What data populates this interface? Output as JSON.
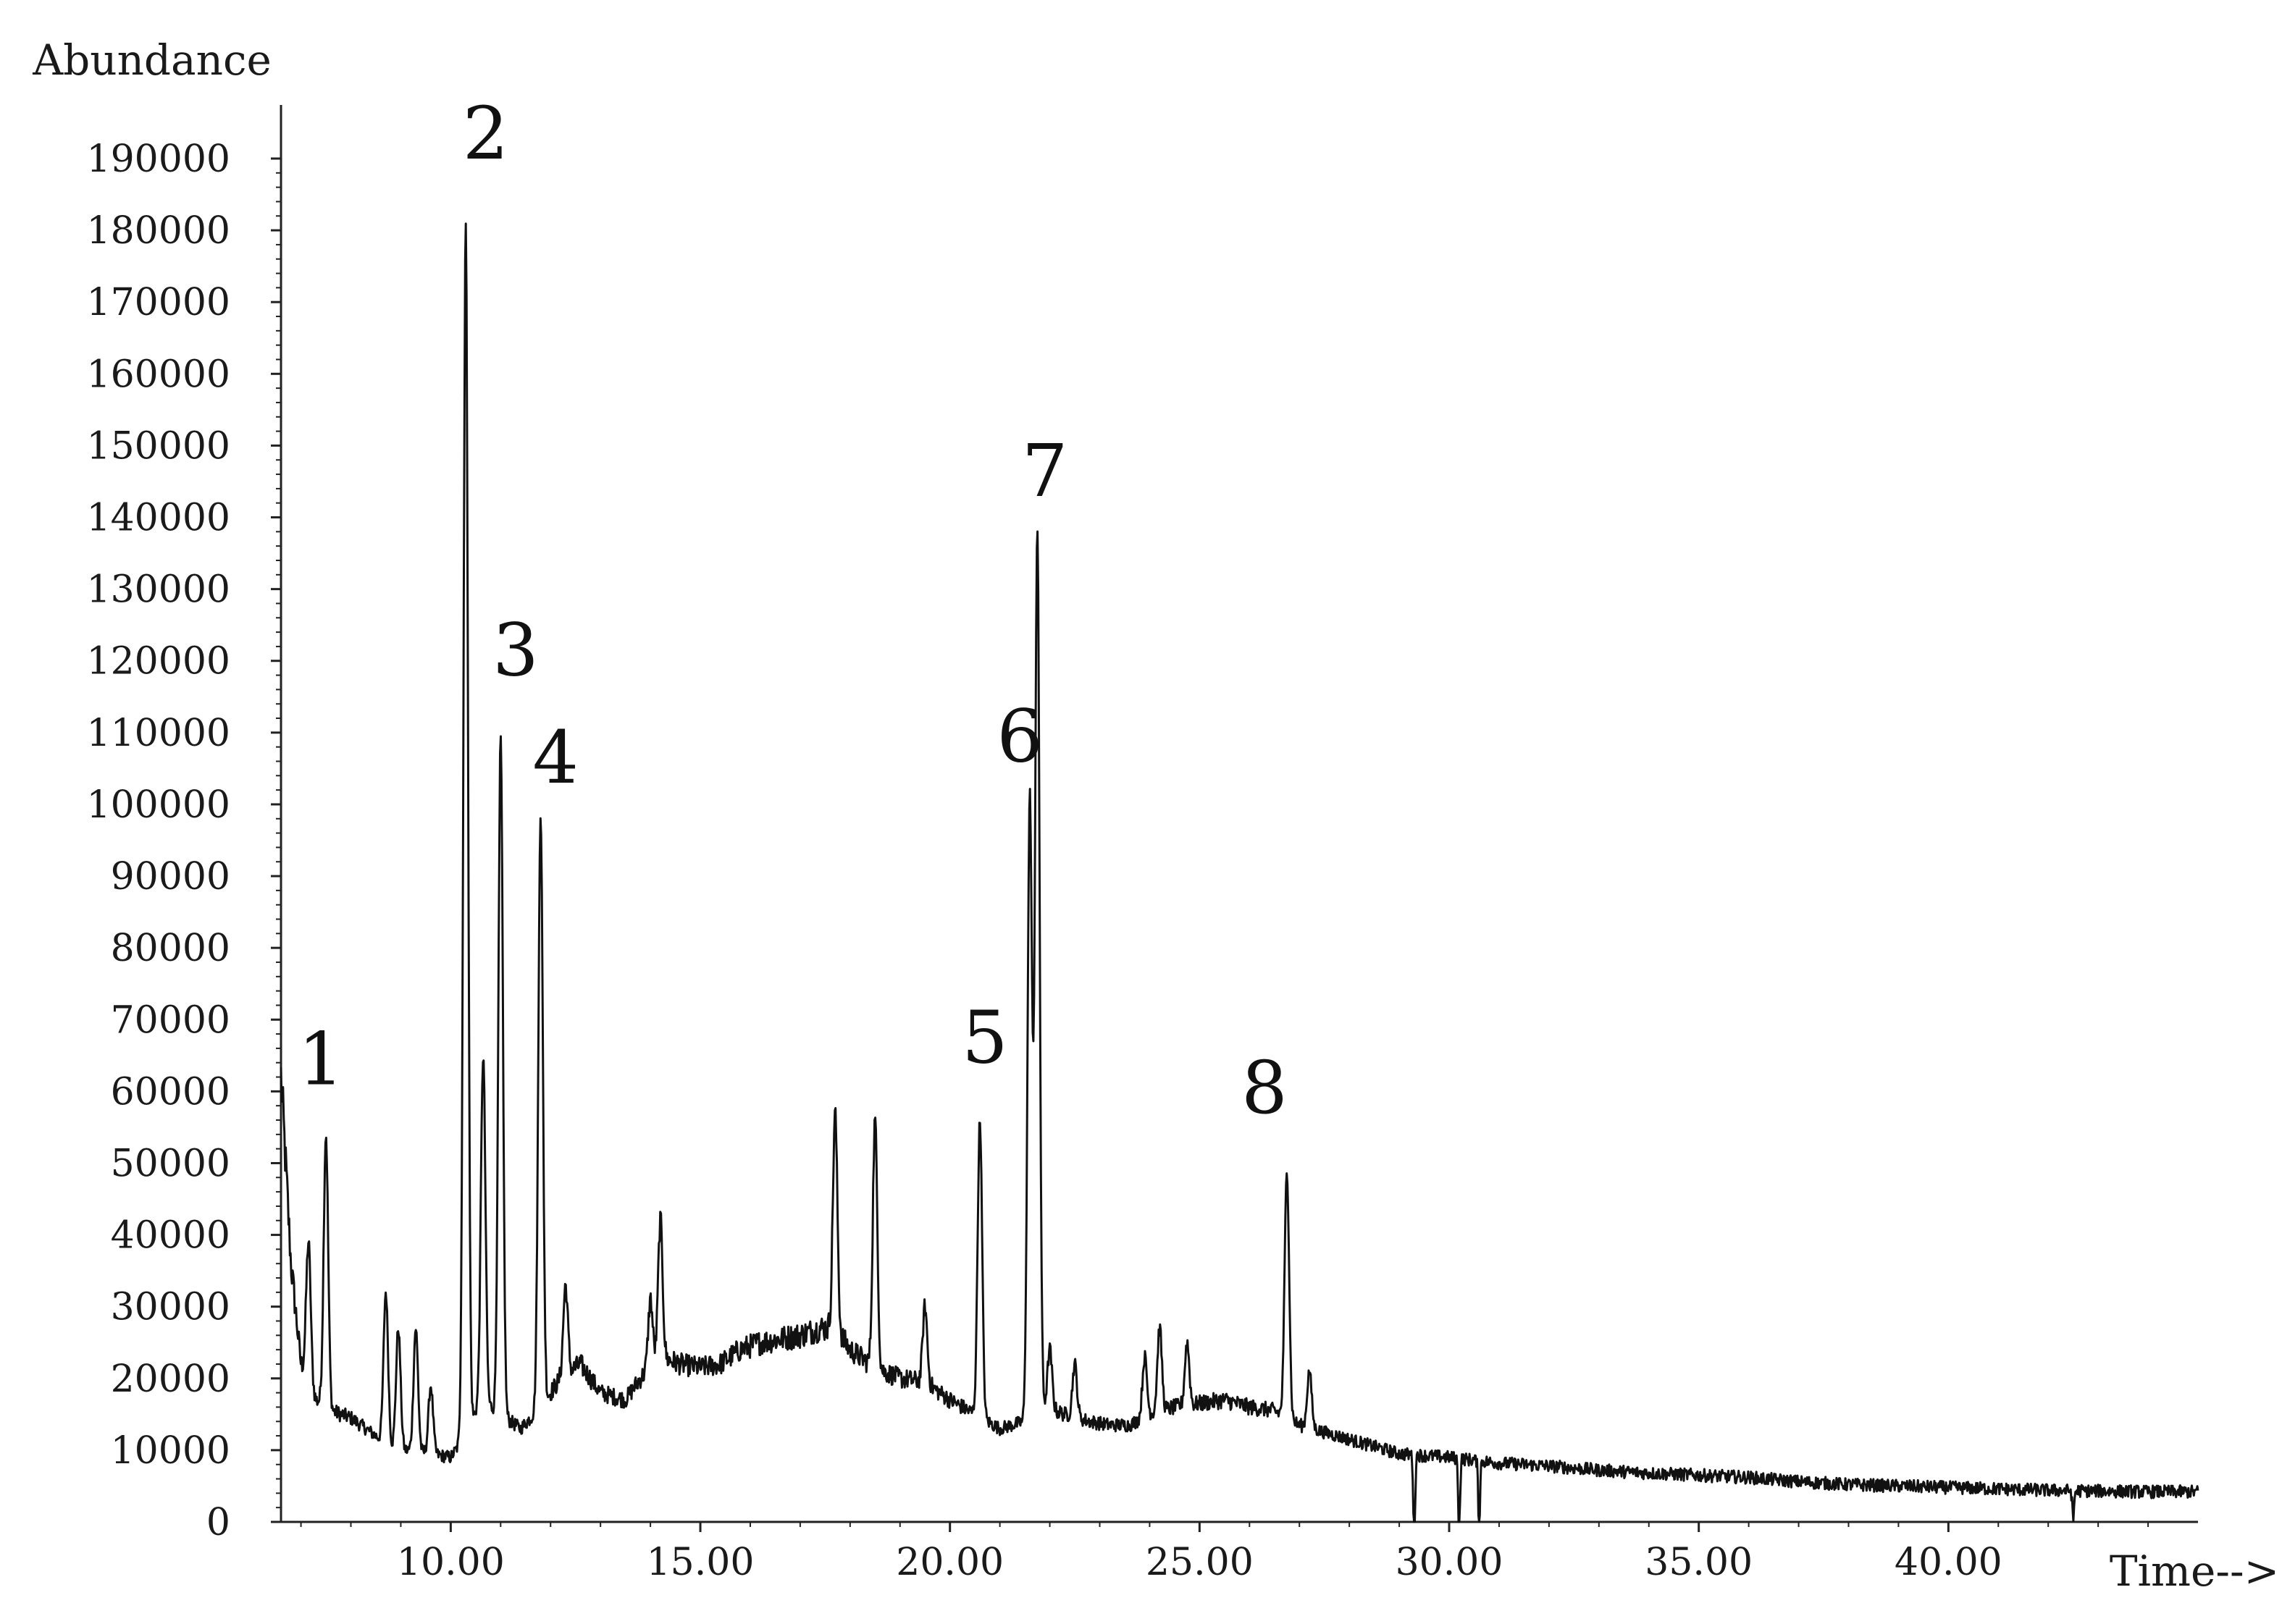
{
  "chart_data": {
    "type": "line",
    "ylabel": "Abundance",
    "xlabel": "Time-->",
    "xlim": [
      6.6,
      45.0
    ],
    "ylim": [
      0,
      200000
    ],
    "x_ticks": [
      10,
      15,
      20,
      25,
      30,
      35,
      40
    ],
    "x_tick_labels": [
      "10.00",
      "15.00",
      "20.00",
      "25.00",
      "30.00",
      "35.00",
      "40.00"
    ],
    "y_ticks": [
      0,
      10000,
      20000,
      30000,
      40000,
      50000,
      60000,
      70000,
      80000,
      90000,
      100000,
      110000,
      120000,
      130000,
      140000,
      150000,
      160000,
      170000,
      180000,
      190000
    ],
    "y_tick_labels": [
      "0",
      "10000",
      "20000",
      "30000",
      "40000",
      "50000",
      "60000",
      "70000",
      "80000",
      "90000",
      "100000",
      "110000",
      "120000",
      "130000",
      "140000",
      "150000",
      "160000",
      "170000",
      "180000",
      "190000"
    ],
    "grid": false,
    "peak_labels": [
      {
        "label": "1",
        "x": 7.4,
        "y": 61000
      },
      {
        "label": "2",
        "x": 10.7,
        "y": 190000
      },
      {
        "label": "3",
        "x": 11.3,
        "y": 118000
      },
      {
        "label": "4",
        "x": 12.1,
        "y": 103000
      },
      {
        "label": "5",
        "x": 20.7,
        "y": 64000
      },
      {
        "label": "6",
        "x": 21.4,
        "y": 106000
      },
      {
        "label": "7",
        "x": 21.9,
        "y": 143000
      },
      {
        "label": "8",
        "x": 26.3,
        "y": 57000
      }
    ],
    "series": [
      {
        "baseline": [
          [
            6.6,
            62000
          ],
          [
            6.8,
            36000
          ],
          [
            7.0,
            22000
          ],
          [
            7.3,
            17000
          ],
          [
            7.6,
            15500
          ],
          [
            8.0,
            14500
          ],
          [
            8.4,
            12500
          ],
          [
            8.8,
            10500
          ],
          [
            9.1,
            10000
          ],
          [
            9.6,
            9500
          ],
          [
            10.0,
            9000
          ],
          [
            10.3,
            12000
          ],
          [
            10.6,
            17000
          ],
          [
            11.0,
            15000
          ],
          [
            11.4,
            13000
          ],
          [
            11.8,
            16000
          ],
          [
            12.2,
            20000
          ],
          [
            12.6,
            22000
          ],
          [
            13.0,
            18000
          ],
          [
            13.5,
            17000
          ],
          [
            13.8,
            20000
          ],
          [
            14.2,
            23000
          ],
          [
            14.6,
            22000
          ],
          [
            15.0,
            21500
          ],
          [
            15.4,
            22000
          ],
          [
            15.8,
            24000
          ],
          [
            16.2,
            25000
          ],
          [
            16.6,
            25500
          ],
          [
            17.0,
            26000
          ],
          [
            17.4,
            27000
          ],
          [
            17.7,
            27000
          ],
          [
            18.0,
            24000
          ],
          [
            18.5,
            21500
          ],
          [
            19.0,
            20000
          ],
          [
            19.5,
            19500
          ],
          [
            20.0,
            17000
          ],
          [
            20.5,
            15000
          ],
          [
            21.0,
            13000
          ],
          [
            21.5,
            14000
          ],
          [
            21.9,
            16000
          ],
          [
            22.3,
            15000
          ],
          [
            22.8,
            14000
          ],
          [
            23.2,
            13500
          ],
          [
            23.6,
            13500
          ],
          [
            24.0,
            15000
          ],
          [
            24.5,
            16000
          ],
          [
            25.0,
            16500
          ],
          [
            25.5,
            17000
          ],
          [
            26.0,
            16000
          ],
          [
            26.5,
            15500
          ],
          [
            27.0,
            13500
          ],
          [
            27.5,
            12500
          ],
          [
            28.0,
            11500
          ],
          [
            28.5,
            10500
          ],
          [
            29.0,
            9500
          ],
          [
            30.0,
            9000
          ],
          [
            31.0,
            8200
          ],
          [
            32.0,
            7800
          ],
          [
            33.0,
            7200
          ],
          [
            34.0,
            6800
          ],
          [
            35.0,
            6500
          ],
          [
            36.0,
            6200
          ],
          [
            37.0,
            5600
          ],
          [
            38.0,
            5200
          ],
          [
            39.0,
            5000
          ],
          [
            40.0,
            4800
          ],
          [
            41.0,
            4600
          ],
          [
            42.0,
            4400
          ],
          [
            43.0,
            4300
          ],
          [
            44.0,
            4200
          ],
          [
            45.0,
            4200
          ]
        ],
        "peaks": [
          [
            7.15,
            39000
          ],
          [
            7.5,
            54000
          ],
          [
            8.7,
            32000
          ],
          [
            8.95,
            27000
          ],
          [
            9.3,
            27000
          ],
          [
            9.6,
            19000
          ],
          [
            10.3,
            181000
          ],
          [
            10.65,
            65000
          ],
          [
            11.0,
            109000
          ],
          [
            11.8,
            99000
          ],
          [
            12.3,
            33000
          ],
          [
            14.2,
            42000
          ],
          [
            14.0,
            31000
          ],
          [
            17.7,
            57000
          ],
          [
            18.5,
            56000
          ],
          [
            19.5,
            30000
          ],
          [
            20.6,
            56000
          ],
          [
            21.6,
            101000
          ],
          [
            21.75,
            138000
          ],
          [
            22.0,
            24000
          ],
          [
            22.5,
            22000
          ],
          [
            23.9,
            23000
          ],
          [
            24.2,
            27000
          ],
          [
            24.75,
            25000
          ],
          [
            26.75,
            49000
          ],
          [
            27.2,
            21000
          ]
        ],
        "dips": [
          [
            29.3,
            -2500
          ],
          [
            30.2,
            -1500
          ],
          [
            30.6,
            -500
          ],
          [
            42.5,
            300
          ]
        ]
      }
    ]
  }
}
